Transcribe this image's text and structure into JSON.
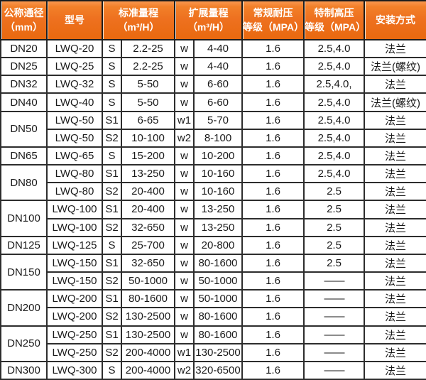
{
  "table": {
    "header": {
      "dn": {
        "line1": "公称通径",
        "line2": "（mm）"
      },
      "model": {
        "line1": "型号",
        "line2": ""
      },
      "std": {
        "line1": "标准量程",
        "line2": "（m³/H）"
      },
      "ext": {
        "line1": "扩展量程",
        "line2": "（m³/H）"
      },
      "pn": {
        "line1": "常规耐压",
        "line2": "等级（MPA）"
      },
      "hp": {
        "line1": "特制高压",
        "line2": "等级（MPA）"
      },
      "mount": {
        "line1": "安装方式",
        "line2": ""
      }
    },
    "rows": [
      {
        "dn": "DN20",
        "dn_rowspan": 1,
        "model": "LWQ-20",
        "s": "S",
        "std": "2.2-25",
        "w": "w",
        "ext": "4-40",
        "pn": "1.6",
        "hp": "2.5,4.0",
        "mount": "法兰"
      },
      {
        "dn": "DN25",
        "dn_rowspan": 1,
        "model": "LWQ-25",
        "s": "S",
        "std": "2.2-25",
        "w": "w",
        "ext": "4-40",
        "pn": "1.6",
        "hp": "2.5,4.0",
        "mount": "法兰(螺纹)"
      },
      {
        "dn": "DN32",
        "dn_rowspan": 1,
        "model": "LWQ-32",
        "s": "S",
        "std": "5-50",
        "w": "w",
        "ext": "6-60",
        "pn": "1.6",
        "hp": "2.5,4.0,",
        "mount": "法兰"
      },
      {
        "dn": "DN40",
        "dn_rowspan": 1,
        "model": "LWQ-40",
        "s": "S",
        "std": "5-50",
        "w": "w",
        "ext": "6-60",
        "pn": "1.6",
        "hp": "2.5,4.0",
        "mount": "法兰(螺纹)"
      },
      {
        "dn": "DN50",
        "dn_rowspan": 2,
        "model": "LWQ-50",
        "s": "S1",
        "std": "6-65",
        "w": "w1",
        "ext": "5-70",
        "pn": "1.6",
        "hp": "2.5,4.0",
        "mount": "法兰"
      },
      {
        "dn": null,
        "dn_rowspan": 0,
        "model": "LWQ-50",
        "s": "S2",
        "std": "10-100",
        "w": "w2",
        "ext": "8-100",
        "pn": "1.6",
        "hp": "2.5,4.0",
        "mount": "法兰"
      },
      {
        "dn": "DN65",
        "dn_rowspan": 1,
        "model": "LWQ-65",
        "s": "S",
        "std": "15-200",
        "w": "w",
        "ext": "10-200",
        "pn": "1.6",
        "hp": "2.5,4.0",
        "mount": "法兰"
      },
      {
        "dn": "DN80",
        "dn_rowspan": 2,
        "model": "LWQ-80",
        "s": "S1",
        "std": "13-250",
        "w": "w",
        "ext": "10-160",
        "pn": "1.6",
        "hp": "2.5,4.0",
        "mount": "法兰"
      },
      {
        "dn": null,
        "dn_rowspan": 0,
        "model": "LWQ-80",
        "s": "S2",
        "std": "20-400",
        "w": "w",
        "ext": "10-160",
        "pn": "1.6",
        "hp": "2.5",
        "mount": "法兰"
      },
      {
        "dn": "DN100",
        "dn_rowspan": 2,
        "model": "LWQ-100",
        "s": "S1",
        "std": "20-400",
        "w": "w",
        "ext": "13-250",
        "pn": "1.6",
        "hp": "2.5",
        "mount": "法兰"
      },
      {
        "dn": null,
        "dn_rowspan": 0,
        "model": "LWQ-100",
        "s": "S2",
        "std": "32-650",
        "w": "w",
        "ext": "13-250",
        "pn": "1.6",
        "hp": "2.5",
        "mount": "法兰"
      },
      {
        "dn": "DN125",
        "dn_rowspan": 1,
        "model": "LWQ-125",
        "s": "S",
        "std": "25-700",
        "w": "w",
        "ext": "20-800",
        "pn": "1.6",
        "hp": "2.5",
        "mount": "法兰"
      },
      {
        "dn": "DN150",
        "dn_rowspan": 2,
        "model": "LWQ-150",
        "s": "S1",
        "std": "32-650",
        "w": "w",
        "ext": "80-1600",
        "pn": "1.6",
        "hp": "2.5",
        "mount": "法兰"
      },
      {
        "dn": null,
        "dn_rowspan": 0,
        "model": "LWQ-150",
        "s": "S2",
        "std": "50-1000",
        "w": "w",
        "ext": "50-1000",
        "pn": "1.6",
        "hp": "——",
        "mount": "法兰"
      },
      {
        "dn": "DN200",
        "dn_rowspan": 2,
        "model": "LWQ-200",
        "s": "S1",
        "std": "80-1600",
        "w": "w",
        "ext": "50-1000",
        "pn": "1.6",
        "hp": "——",
        "mount": "法兰"
      },
      {
        "dn": null,
        "dn_rowspan": 0,
        "model": "LWQ-200",
        "s": "S2",
        "std": "130-2500",
        "w": "w",
        "ext": "80-1600",
        "pn": "1.6",
        "hp": "——",
        "mount": "法兰"
      },
      {
        "dn": "DN250",
        "dn_rowspan": 2,
        "model": "LWQ-250",
        "s": "S1",
        "std": "130-2500",
        "w": "w",
        "ext": "80-1600",
        "pn": "1.6",
        "hp": "——",
        "mount": "法兰"
      },
      {
        "dn": null,
        "dn_rowspan": 0,
        "model": "LWQ-250",
        "s": "S2",
        "std": "200-4000",
        "w": "w1",
        "ext": "130-2500",
        "pn": "1.6",
        "hp": "——",
        "mount": "法兰"
      },
      {
        "dn": "DN300",
        "dn_rowspan": 1,
        "model": "LWQ-300",
        "s": "S",
        "std": "200-4000",
        "w": "w2",
        "ext": "320-6500",
        "pn": "1.6",
        "hp": "——",
        "mount": "法兰"
      }
    ],
    "colors": {
      "header_orange": "#ee7120",
      "header_orange_light": "#f9974f",
      "header_text": "#ffffff",
      "grid_border": "#2d2d2d",
      "body_text": "#1a1a1a"
    }
  }
}
